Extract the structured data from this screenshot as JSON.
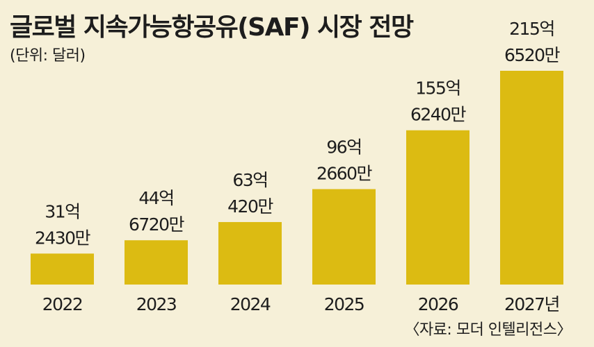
{
  "chart_data": {
    "type": "bar",
    "title": "글로벌 지속가능항공유(SAF) 시장 전망",
    "unit_note": "(단위: 달러)",
    "source": "〈자료: 모더 인텔리전스〉",
    "categories": [
      "2022",
      "2023",
      "2024",
      "2025",
      "2026",
      "2027년"
    ],
    "values": [
      3124300000,
      4467200000,
      6304200000,
      9626600000,
      15562400000,
      21565200000
    ],
    "value_labels": [
      [
        "31억",
        "2430만"
      ],
      [
        "44억",
        "6720만"
      ],
      [
        "63억",
        "420만"
      ],
      [
        "96억",
        "2660만"
      ],
      [
        "155억",
        "6240만"
      ],
      [
        "215억",
        "6520만"
      ]
    ],
    "ylim": [
      0,
      21565200000
    ],
    "grid": false,
    "legend": "none",
    "bar_color": "#dcbb12",
    "background_color": "#f6f0d8"
  }
}
